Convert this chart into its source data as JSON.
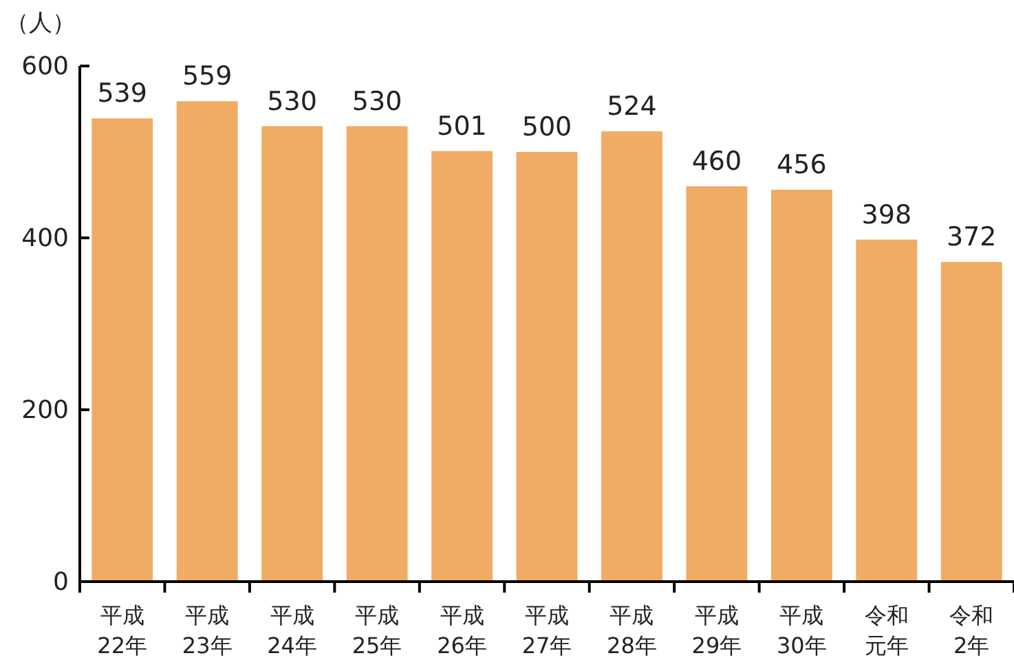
{
  "chart_data": {
    "type": "bar",
    "ylabel": "（人）",
    "categories": [
      "平成22年",
      "平成23年",
      "平成24年",
      "平成25年",
      "平成26年",
      "平成27年",
      "平成28年",
      "平成29年",
      "平成30年",
      "令和元年",
      "令和2年"
    ],
    "values": [
      539,
      559,
      530,
      530,
      501,
      500,
      524,
      460,
      456,
      398,
      372
    ],
    "color": "#f0ac64",
    "ylim": [
      0,
      600
    ],
    "yticks": [
      0,
      200,
      400,
      600
    ],
    "data_labels": true
  }
}
